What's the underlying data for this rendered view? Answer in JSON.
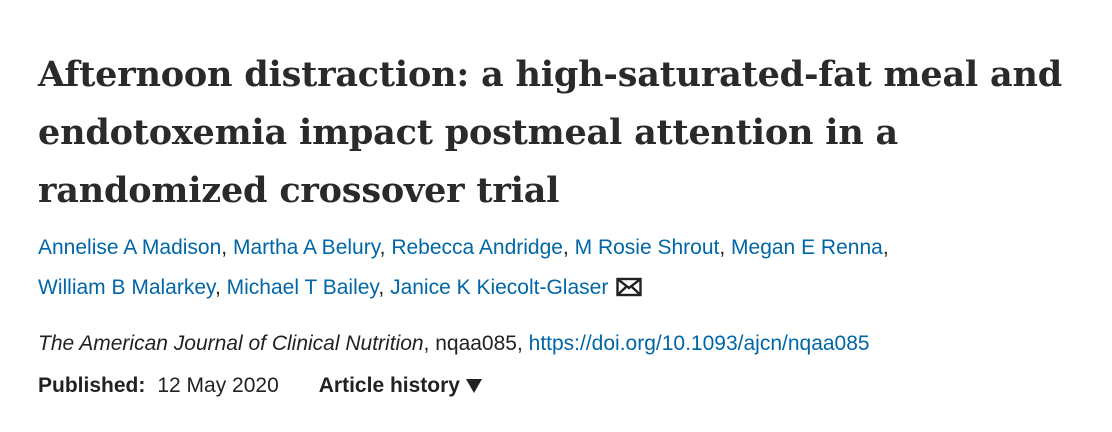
{
  "article": {
    "title": "Afternoon distraction: a high-saturated-fat meal and endotoxemia impact postmeal attention in a randomized crossover trial",
    "authors": [
      "Annelise A Madison",
      "Martha A Belury",
      "Rebecca Andridge",
      "M Rosie Shrout",
      "Megan E Renna",
      "William B Malarkey",
      "Michael T Bailey",
      "Janice K Kiecolt-Glaser"
    ],
    "author_separator": ", ",
    "contact_icon": "envelope-icon",
    "citation": {
      "journal": "The American Journal of Clinical Nutrition",
      "article_id": "nqaa085",
      "doi_url": "https://doi.org/10.1093/ajcn/nqaa085"
    },
    "published_label": "Published:",
    "published_date": "12 May 2020",
    "history_label": "Article history",
    "history_icon": "caret-down-icon"
  },
  "colors": {
    "link": "#0066a8",
    "text": "#222222",
    "title": "#2a2a2a"
  }
}
